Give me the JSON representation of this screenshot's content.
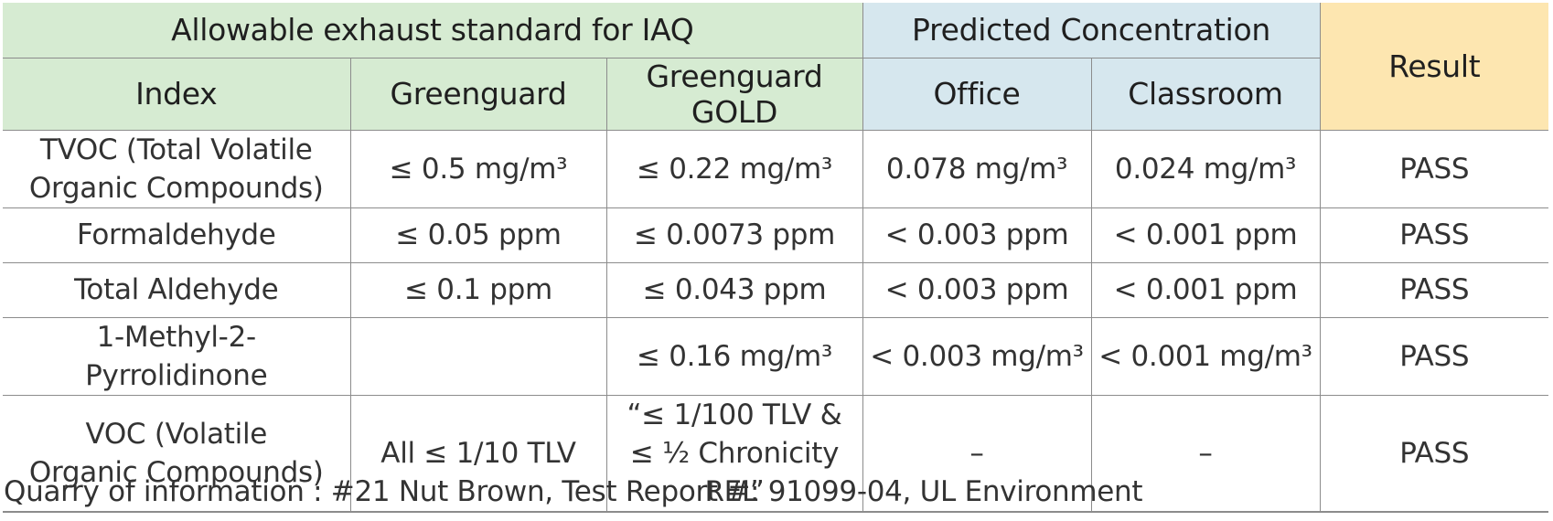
{
  "header": {
    "group_allowable": "Allowable exhaust standard for IAQ",
    "group_predicted": "Predicted Concentration",
    "result": "Result",
    "col_index": "Index",
    "col_greenguard": "Greenguard",
    "col_greenguard_gold": "Greenguard GOLD",
    "col_office": "Office",
    "col_classroom": "Classroom"
  },
  "rows": [
    {
      "index": "TVOC (Total Volatile\nOrganic Compounds)",
      "greenguard": "≤ 0.5 mg/m³",
      "greenguard_gold": "≤ 0.22 mg/m³",
      "office": "0.078 mg/m³",
      "classroom": "0.024 mg/m³",
      "result": "PASS"
    },
    {
      "index": "Formaldehyde",
      "greenguard": "≤ 0.05 ppm",
      "greenguard_gold": "≤ 0.0073 ppm",
      "office": "< 0.003 ppm",
      "classroom": "< 0.001 ppm",
      "result": "PASS"
    },
    {
      "index": "Total Aldehyde",
      "greenguard": "≤ 0.1 ppm",
      "greenguard_gold": "≤ 0.043 ppm",
      "office": "< 0.003 ppm",
      "classroom": "< 0.001 ppm",
      "result": "PASS"
    },
    {
      "index": "1-Methyl-2-Pyrrolidinone",
      "greenguard": "",
      "greenguard_gold": "≤ 0.16 mg/m³",
      "office": "< 0.003 mg/m³",
      "classroom": "< 0.001 mg/m³",
      "result": "PASS"
    },
    {
      "index": "VOC (Volatile\nOrganic Compounds)",
      "greenguard": "All ≤ 1/10 TLV",
      "greenguard_gold": "“≤ 1/100 TLV &\n≤ ½ Chronicity REL”",
      "office": "–",
      "classroom": "–",
      "result": "PASS"
    }
  ],
  "source": "Quarry of information : #21 Nut Brown, Test Report #:  91099-04, UL Environment",
  "colors": {
    "allowable_header": "#d6ebd2",
    "predicted_header": "#d6e7ee",
    "result_header": "#fde6b0"
  }
}
